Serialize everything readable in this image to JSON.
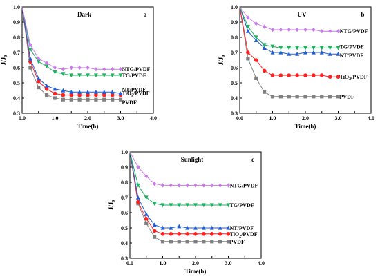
{
  "colors": {
    "PVDF": "#808080",
    "TiO2/PVDF": "#ff2020",
    "NT/PVDF": "#1f5fd6",
    "TG/PVDF": "#1fb060",
    "NTG/PVDF": "#c77bea"
  },
  "chart_data": [
    {
      "type": "line",
      "title": "Dark",
      "letter": "a",
      "xlabel": "Time(h)",
      "ylabel": "J/J0",
      "xlim": [
        0.0,
        4.0
      ],
      "ylim": [
        0.3,
        1.0
      ],
      "x": [
        0,
        0.25,
        0.5,
        0.75,
        1.0,
        1.25,
        1.5,
        1.75,
        2.0,
        2.25,
        2.5,
        2.75,
        3.0
      ],
      "series": [
        {
          "name": "PVDF",
          "marker": "square",
          "values": [
            1.0,
            0.6,
            0.47,
            0.42,
            0.4,
            0.39,
            0.39,
            0.39,
            0.39,
            0.39,
            0.39,
            0.39,
            0.39
          ]
        },
        {
          "name": "TiO2/PVDF",
          "marker": "circle",
          "values": [
            1.0,
            0.64,
            0.51,
            0.46,
            0.43,
            0.42,
            0.42,
            0.42,
            0.42,
            0.42,
            0.42,
            0.42,
            0.42
          ]
        },
        {
          "name": "NT/PVDF",
          "marker": "triangle-up",
          "values": [
            1.0,
            0.66,
            0.53,
            0.48,
            0.46,
            0.45,
            0.44,
            0.44,
            0.44,
            0.44,
            0.44,
            0.44,
            0.43
          ]
        },
        {
          "name": "TG/PVDF",
          "marker": "triangle-down",
          "values": [
            1.0,
            0.72,
            0.64,
            0.61,
            0.57,
            0.56,
            0.55,
            0.55,
            0.55,
            0.55,
            0.55,
            0.55,
            0.55
          ]
        },
        {
          "name": "NTG/PVDF",
          "marker": "diamond",
          "values": [
            1.0,
            0.75,
            0.66,
            0.63,
            0.6,
            0.59,
            0.6,
            0.6,
            0.6,
            0.59,
            0.59,
            0.59,
            0.59
          ]
        }
      ]
    },
    {
      "type": "line",
      "title": "UV",
      "letter": "b",
      "xlabel": "Time(h)",
      "ylabel": "J/J0",
      "xlim": [
        0.0,
        4.0
      ],
      "ylim": [
        0.3,
        1.0
      ],
      "x": [
        0,
        0.25,
        0.5,
        0.75,
        1.0,
        1.25,
        1.5,
        1.75,
        2.0,
        2.25,
        2.5,
        2.75,
        3.0
      ],
      "series": [
        {
          "name": "PVDF",
          "marker": "square",
          "values": [
            1.0,
            0.66,
            0.53,
            0.44,
            0.41,
            0.41,
            0.41,
            0.41,
            0.41,
            0.41,
            0.41,
            0.41,
            0.41
          ]
        },
        {
          "name": "TiO2/PVDF",
          "marker": "circle",
          "values": [
            1.0,
            0.7,
            0.65,
            0.58,
            0.55,
            0.55,
            0.55,
            0.55,
            0.55,
            0.55,
            0.55,
            0.54,
            0.54
          ]
        },
        {
          "name": "NT/PVDF",
          "marker": "triangle-up",
          "values": [
            1.0,
            0.84,
            0.78,
            0.73,
            0.7,
            0.7,
            0.69,
            0.69,
            0.7,
            0.7,
            0.7,
            0.69,
            0.69
          ]
        },
        {
          "name": "TG/PVDF",
          "marker": "triangle-down",
          "values": [
            1.0,
            0.87,
            0.8,
            0.75,
            0.74,
            0.73,
            0.73,
            0.73,
            0.73,
            0.73,
            0.73,
            0.73,
            0.73
          ]
        },
        {
          "name": "NTG/PVDF",
          "marker": "diamond",
          "values": [
            1.0,
            0.93,
            0.89,
            0.87,
            0.85,
            0.85,
            0.85,
            0.85,
            0.85,
            0.85,
            0.84,
            0.84,
            0.84
          ]
        }
      ]
    },
    {
      "type": "line",
      "title": "Sunlight",
      "letter": "c",
      "xlabel": "Time(h)",
      "ylabel": "J/J0",
      "xlim": [
        0.0,
        4.0
      ],
      "ylim": [
        0.3,
        1.0
      ],
      "x": [
        0,
        0.25,
        0.5,
        0.75,
        1.0,
        1.25,
        1.5,
        1.75,
        2.0,
        2.25,
        2.5,
        2.75,
        3.0
      ],
      "series": [
        {
          "name": "PVDF",
          "marker": "square",
          "values": [
            1.0,
            0.66,
            0.53,
            0.44,
            0.41,
            0.41,
            0.41,
            0.41,
            0.41,
            0.41,
            0.41,
            0.41,
            0.41
          ]
        },
        {
          "name": "TiO2/PVDF",
          "marker": "circle",
          "values": [
            1.0,
            0.67,
            0.56,
            0.48,
            0.46,
            0.46,
            0.46,
            0.46,
            0.46,
            0.46,
            0.46,
            0.46,
            0.46
          ]
        },
        {
          "name": "NT/PVDF",
          "marker": "triangle-up",
          "values": [
            1.0,
            0.7,
            0.59,
            0.52,
            0.5,
            0.5,
            0.51,
            0.5,
            0.5,
            0.5,
            0.5,
            0.5,
            0.5
          ]
        },
        {
          "name": "TG/PVDF",
          "marker": "triangle-down",
          "values": [
            1.0,
            0.78,
            0.7,
            0.66,
            0.65,
            0.65,
            0.65,
            0.65,
            0.65,
            0.65,
            0.65,
            0.65,
            0.65
          ]
        },
        {
          "name": "NTG/PVDF",
          "marker": "diamond",
          "values": [
            1.0,
            0.9,
            0.84,
            0.79,
            0.78,
            0.78,
            0.78,
            0.78,
            0.78,
            0.78,
            0.78,
            0.78,
            0.78
          ]
        }
      ]
    }
  ]
}
